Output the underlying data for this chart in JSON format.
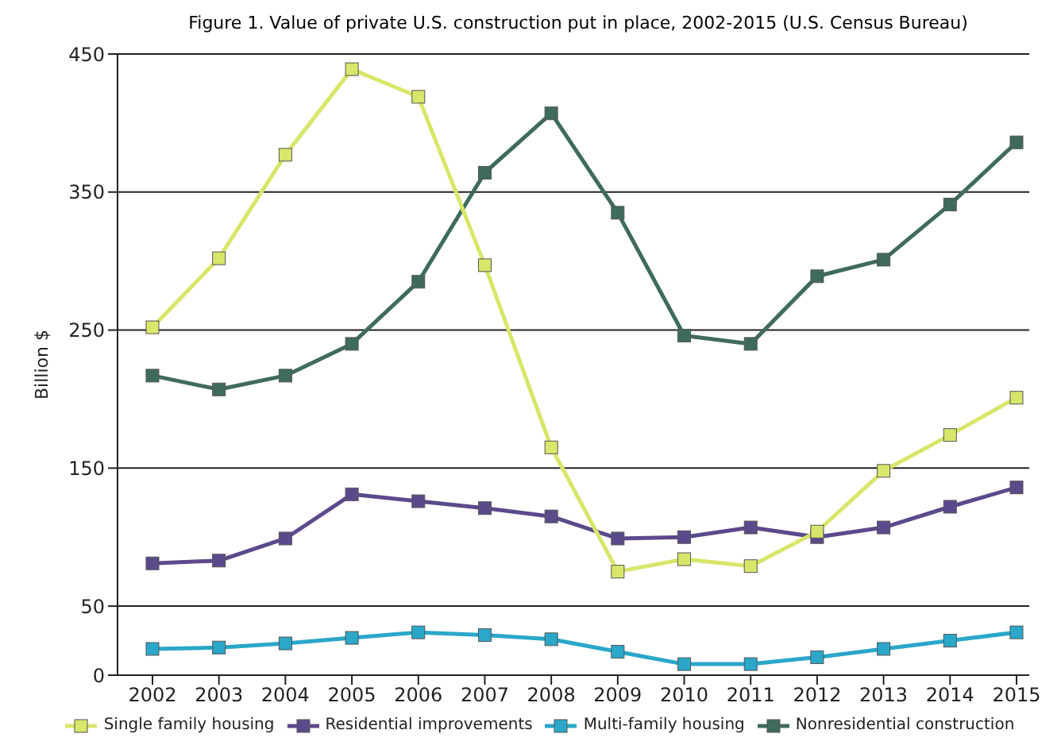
{
  "chart_data": {
    "type": "line",
    "title": "Figure 1. Value of private U.S. construction put in place, 2002-2015 (U.S. Census Bureau)",
    "ylabel": "Billion $",
    "categories": [
      "2002",
      "2003",
      "2004",
      "2005",
      "2006",
      "2007",
      "2008",
      "2009",
      "2010",
      "2011",
      "2012",
      "2013",
      "2014",
      "2015"
    ],
    "series": [
      {
        "name": "Single family housing",
        "color": "#d8e66a",
        "values": [
          252,
          302,
          377,
          439,
          419,
          297,
          165,
          75,
          84,
          79,
          104,
          148,
          174,
          201
        ]
      },
      {
        "name": "Residential improvements",
        "color": "#5b4a8b",
        "values": [
          81,
          83,
          99,
          131,
          126,
          121,
          115,
          99,
          100,
          107,
          100,
          107,
          122,
          136
        ]
      },
      {
        "name": "Multi-family housing",
        "color": "#2aa7c9",
        "values": [
          19,
          20,
          23,
          27,
          31,
          29,
          26,
          17,
          8,
          8,
          13,
          19,
          25,
          31
        ]
      },
      {
        "name": "Nonresidential construction",
        "color": "#3f6b5e",
        "values": [
          217,
          207,
          217,
          240,
          285,
          364,
          407,
          335,
          246,
          240,
          289,
          301,
          341,
          386
        ]
      }
    ],
    "ylim": [
      0,
      450
    ],
    "yticks": [
      0,
      50,
      150,
      250,
      350,
      450
    ],
    "grid": "y",
    "legend": "bottom",
    "marker": "square",
    "line_style": "solid"
  }
}
